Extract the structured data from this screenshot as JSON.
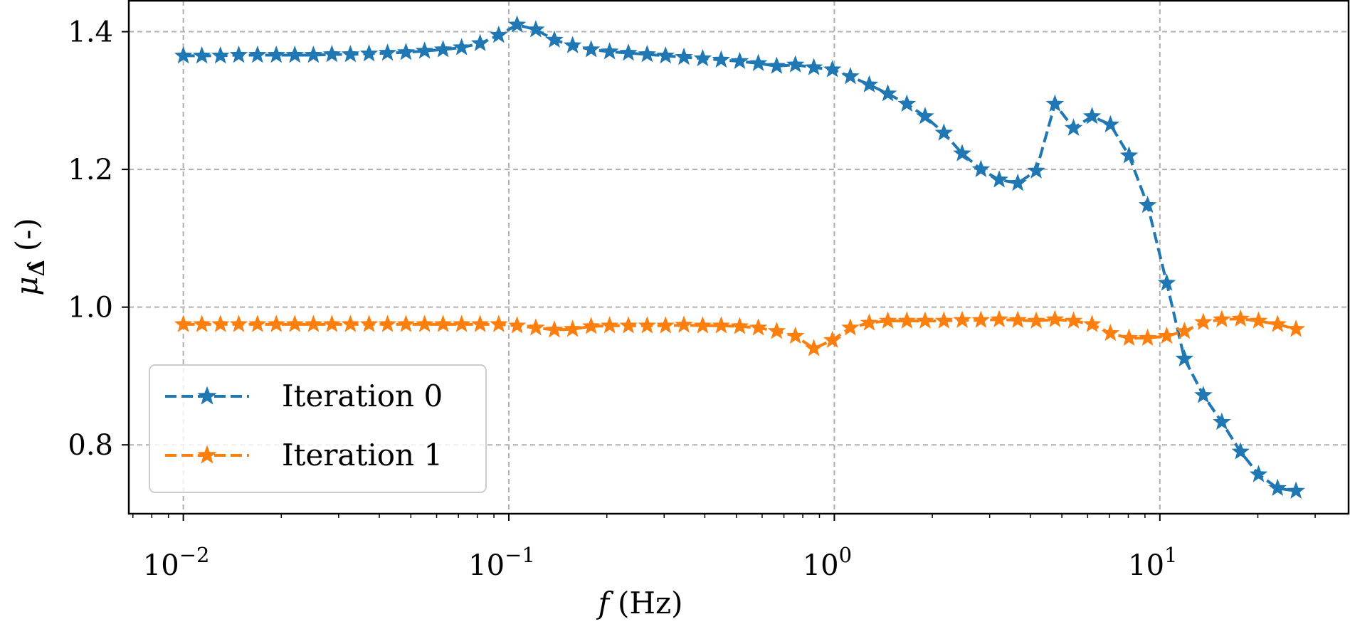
{
  "chart_data": {
    "type": "line",
    "xscale": "log",
    "xlabel": "f (Hz)",
    "xlabel_parts": {
      "symbol": "f",
      "unit": "(Hz)"
    },
    "ylabel": "μΔ̂ (-)",
    "ylabel_parts": {
      "symbol": "μ",
      "subscript": "Δ̂",
      "unit": "(-)"
    },
    "xlim": [
      0.0068,
      38
    ],
    "ylim": [
      0.7,
      1.445
    ],
    "xticks": [
      {
        "value": 0.01,
        "base": "10",
        "exp": "−2"
      },
      {
        "value": 0.1,
        "base": "10",
        "exp": "−1"
      },
      {
        "value": 1,
        "base": "10",
        "exp": "0"
      },
      {
        "value": 10,
        "base": "10",
        "exp": "1"
      }
    ],
    "yticks": [
      {
        "value": 0.8,
        "label": "0.8"
      },
      {
        "value": 1.0,
        "label": "1.0"
      },
      {
        "value": 1.2,
        "label": "1.2"
      },
      {
        "value": 1.4,
        "label": "1.4"
      }
    ],
    "grid": true,
    "legend_position": "bottom-left",
    "series": [
      {
        "name": "Iteration 0",
        "color": "#1f77b4",
        "linestyle": "dashed",
        "marker": "star",
        "x": [
          0.01,
          0.0114,
          0.013,
          0.0148,
          0.0169,
          0.0193,
          0.022,
          0.0251,
          0.0286,
          0.0326,
          0.0372,
          0.0424,
          0.0483,
          0.0551,
          0.0628,
          0.0716,
          0.0816,
          0.0931,
          0.106,
          0.121,
          0.138,
          0.157,
          0.179,
          0.204,
          0.233,
          0.266,
          0.303,
          0.345,
          0.394,
          0.449,
          0.512,
          0.584,
          0.665,
          0.759,
          0.865,
          0.986,
          1.12,
          1.28,
          1.46,
          1.67,
          1.9,
          2.17,
          2.47,
          2.82,
          3.21,
          3.66,
          4.17,
          4.76,
          5.43,
          6.19,
          7.05,
          8.04,
          9.17,
          10.5,
          11.9,
          13.6,
          15.5,
          17.7,
          20.1,
          23,
          26.2
        ],
        "y": [
          1.365,
          1.365,
          1.365,
          1.366,
          1.366,
          1.366,
          1.366,
          1.366,
          1.367,
          1.367,
          1.368,
          1.369,
          1.37,
          1.372,
          1.374,
          1.377,
          1.383,
          1.395,
          1.41,
          1.403,
          1.388,
          1.38,
          1.374,
          1.371,
          1.369,
          1.367,
          1.365,
          1.363,
          1.361,
          1.359,
          1.357,
          1.354,
          1.35,
          1.352,
          1.348,
          1.345,
          1.335,
          1.323,
          1.31,
          1.295,
          1.277,
          1.253,
          1.223,
          1.2,
          1.185,
          1.18,
          1.198,
          1.295,
          1.26,
          1.277,
          1.265,
          1.22,
          1.148,
          1.035,
          0.925,
          0.872,
          0.833,
          0.79,
          0.757,
          0.737,
          0.733
        ]
      },
      {
        "name": "Iteration 1",
        "color": "#ff7f0e",
        "linestyle": "dashed",
        "marker": "star",
        "x": [
          0.01,
          0.0114,
          0.013,
          0.0148,
          0.0169,
          0.0193,
          0.022,
          0.0251,
          0.0286,
          0.0326,
          0.0372,
          0.0424,
          0.0483,
          0.0551,
          0.0628,
          0.0716,
          0.0816,
          0.0931,
          0.106,
          0.121,
          0.138,
          0.157,
          0.179,
          0.204,
          0.233,
          0.266,
          0.303,
          0.345,
          0.394,
          0.449,
          0.512,
          0.584,
          0.665,
          0.759,
          0.865,
          0.986,
          1.12,
          1.28,
          1.46,
          1.67,
          1.9,
          2.17,
          2.47,
          2.82,
          3.21,
          3.66,
          4.17,
          4.76,
          5.43,
          6.19,
          7.05,
          8.04,
          9.17,
          10.5,
          11.9,
          13.6,
          15.5,
          17.7,
          20.1,
          23,
          26.2
        ],
        "y": [
          0.975,
          0.975,
          0.975,
          0.975,
          0.975,
          0.975,
          0.975,
          0.975,
          0.975,
          0.975,
          0.975,
          0.975,
          0.975,
          0.975,
          0.975,
          0.975,
          0.975,
          0.975,
          0.973,
          0.97,
          0.967,
          0.968,
          0.972,
          0.973,
          0.973,
          0.973,
          0.973,
          0.974,
          0.973,
          0.973,
          0.972,
          0.97,
          0.965,
          0.958,
          0.94,
          0.952,
          0.97,
          0.977,
          0.98,
          0.98,
          0.98,
          0.98,
          0.981,
          0.981,
          0.982,
          0.981,
          0.98,
          0.982,
          0.98,
          0.975,
          0.962,
          0.955,
          0.955,
          0.958,
          0.965,
          0.978,
          0.982,
          0.983,
          0.98,
          0.975,
          0.968
        ]
      }
    ]
  }
}
